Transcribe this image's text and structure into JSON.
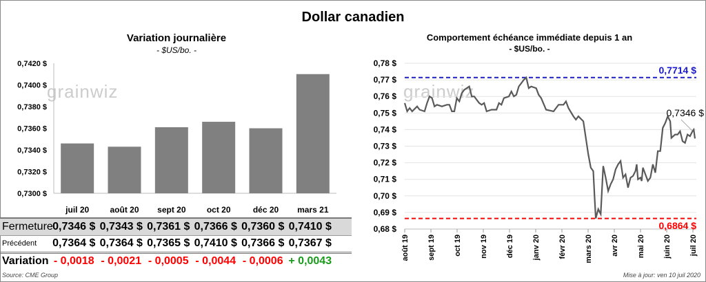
{
  "title": "Dollar canadien",
  "left": {
    "title": "Variation  journalière",
    "unit": "- $US/bo. -"
  },
  "right": {
    "title": "Comportement échéance immédiate depuis 1 an",
    "unit": "- $US/bo. -"
  },
  "watermark": "grainwiz",
  "table": {
    "headers": [
      "juil 20",
      "août 20",
      "sept 20",
      "oct 20",
      "déc 20",
      "mars 21"
    ],
    "rows": [
      {
        "label": "Fermeture",
        "values": [
          "0,7346  $",
          "0,7343  $",
          "0,7361  $",
          "0,7366  $",
          "0,7360  $",
          "0,7410  $"
        ]
      },
      {
        "label": "Précédent",
        "values": [
          "0,7364  $",
          "0,7364  $",
          "0,7365  $",
          "0,7410  $",
          "0,7366  $",
          "0,7367  $"
        ]
      },
      {
        "label": "Variation",
        "values": [
          "- 0,0018",
          "- 0,0021",
          "- 0,0005",
          "- 0,0044",
          "- 0,0006",
          "+ 0,0043"
        ]
      }
    ]
  },
  "source": "Source: CME Group",
  "updated": "Mise à jour: ven 10 juil 2020",
  "colors": {
    "bar": "#808080",
    "line": "#595959",
    "high": "#1a1acc",
    "low": "#ff0000",
    "neg": "#ff0000",
    "pos": "#1a9a1a"
  },
  "chart_data": [
    {
      "type": "bar",
      "title": "Variation  journalière",
      "ylabel": "- $US/bo. -",
      "categories": [
        "juil 20",
        "août 20",
        "sept 20",
        "oct 20",
        "déc 20",
        "mars 21"
      ],
      "values": [
        0.7346,
        0.7343,
        0.7361,
        0.7366,
        0.736,
        0.741
      ],
      "ylim": [
        0.73,
        0.742
      ],
      "yticks": [
        "0,7300 $",
        "0,7320 $",
        "0,7340 $",
        "0,7360 $",
        "0,7380 $",
        "0,7400 $",
        "0,7420 $"
      ]
    },
    {
      "type": "line",
      "title": "Comportement échéance immédiate depuis 1 an",
      "ylabel": "- $US/bo. -",
      "ylim": [
        0.68,
        0.78
      ],
      "yticks": [
        "0,68 $",
        "0,69 $",
        "0,70 $",
        "0,71 $",
        "0,72 $",
        "0,73 $",
        "0,74 $",
        "0,75 $",
        "0,76 $",
        "0,77 $",
        "0,78 $"
      ],
      "xticks": [
        "août 19",
        "sept 19",
        "oct 19",
        "nov 19",
        "déc 19",
        "janv 20",
        "févr 20",
        "mars 20",
        "avr 20",
        "mai 20",
        "juin 20",
        "juil 20"
      ],
      "high": {
        "value": 0.7714,
        "label": "0,7714 $"
      },
      "low": {
        "value": 0.6864,
        "label": "0,6864 $"
      },
      "last": {
        "value": 0.7346,
        "label": "0,7346 $"
      },
      "series_months_since_aug19": [
        0,
        0.1,
        0.2,
        0.3,
        0.5,
        0.6,
        0.8,
        0.9,
        1.0,
        1.1,
        1.2,
        1.3,
        1.5,
        1.7,
        1.8,
        1.9,
        2.0,
        2.1,
        2.2,
        2.3,
        2.4,
        2.6,
        2.7,
        2.8,
        3.0,
        3.1,
        3.2,
        3.3,
        3.5,
        3.7,
        3.8,
        3.9,
        4.0,
        4.2,
        4.3,
        4.4,
        4.5,
        4.6,
        4.8,
        4.9,
        5.0,
        5.1,
        5.3,
        5.4,
        5.5,
        5.7,
        6.0,
        6.2,
        6.4,
        6.5,
        6.6,
        6.8,
        6.9,
        7.0,
        7.2,
        7.3,
        7.4,
        7.5,
        7.6,
        7.65,
        7.7,
        7.8,
        7.9,
        8.0,
        8.1,
        8.2,
        8.3,
        8.4,
        8.5,
        8.6,
        8.7,
        8.8,
        8.9,
        9.0,
        9.1,
        9.2,
        9.3,
        9.35,
        9.4,
        9.5,
        9.55,
        9.6,
        9.7,
        9.8,
        9.9,
        10.0,
        10.1,
        10.2,
        10.3,
        10.4,
        10.5,
        10.6,
        10.7,
        10.75,
        10.9,
        11.0,
        11.1,
        11.2,
        11.3,
        11.4,
        11.5,
        11.6,
        11.65,
        11.7
      ],
      "series_values": [
        0.756,
        0.751,
        0.753,
        0.751,
        0.754,
        0.752,
        0.751,
        0.756,
        0.76,
        0.759,
        0.754,
        0.755,
        0.754,
        0.755,
        0.755,
        0.751,
        0.751,
        0.759,
        0.757,
        0.762,
        0.764,
        0.766,
        0.76,
        0.76,
        0.756,
        0.755,
        0.756,
        0.751,
        0.752,
        0.752,
        0.756,
        0.755,
        0.759,
        0.76,
        0.763,
        0.76,
        0.761,
        0.766,
        0.77,
        0.7714,
        0.765,
        0.766,
        0.765,
        0.761,
        0.759,
        0.752,
        0.751,
        0.755,
        0.755,
        0.757,
        0.753,
        0.748,
        0.746,
        0.748,
        0.745,
        0.735,
        0.725,
        0.717,
        0.715,
        0.7,
        0.6864,
        0.692,
        0.689,
        0.718,
        0.711,
        0.703,
        0.707,
        0.71,
        0.716,
        0.719,
        0.721,
        0.711,
        0.713,
        0.705,
        0.711,
        0.712,
        0.715,
        0.719,
        0.71,
        0.711,
        0.709,
        0.717,
        0.713,
        0.709,
        0.711,
        0.719,
        0.714,
        0.727,
        0.727,
        0.741,
        0.744,
        0.748,
        0.745,
        0.735,
        0.737,
        0.737,
        0.739,
        0.733,
        0.732,
        0.737,
        0.736,
        0.739,
        0.74,
        0.7346
      ]
    }
  ]
}
